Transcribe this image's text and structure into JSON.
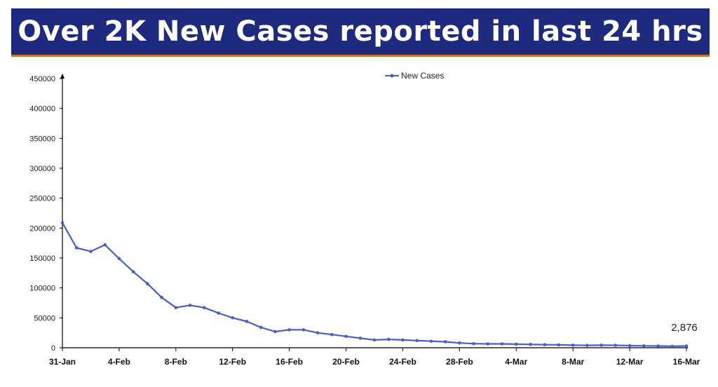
{
  "header": {
    "title": "Over 2K New Cases reported in last 24 hrs"
  },
  "colors": {
    "banner": "#1e2a7e",
    "banner_rule": "#c8742a",
    "series": "#4a5fc1"
  },
  "chart_data": {
    "type": "line",
    "title": "",
    "xlabel": "",
    "ylabel": "",
    "ylim": [
      0,
      450000
    ],
    "y_ticks": [
      0,
      50000,
      100000,
      150000,
      200000,
      250000,
      300000,
      350000,
      400000,
      450000
    ],
    "x_tick_labels": [
      "31-Jan",
      "4-Feb",
      "8-Feb",
      "12-Feb",
      "16-Feb",
      "20-Feb",
      "24-Feb",
      "28-Feb",
      "4-Mar",
      "8-Mar",
      "12-Mar",
      "16-Mar"
    ],
    "x": [
      "31-Jan",
      "1-Feb",
      "2-Feb",
      "3-Feb",
      "4-Feb",
      "5-Feb",
      "6-Feb",
      "7-Feb",
      "8-Feb",
      "9-Feb",
      "10-Feb",
      "11-Feb",
      "12-Feb",
      "13-Feb",
      "14-Feb",
      "15-Feb",
      "16-Feb",
      "17-Feb",
      "18-Feb",
      "19-Feb",
      "20-Feb",
      "21-Feb",
      "22-Feb",
      "23-Feb",
      "24-Feb",
      "25-Feb",
      "26-Feb",
      "27-Feb",
      "28-Feb",
      "1-Mar",
      "2-Mar",
      "3-Mar",
      "4-Mar",
      "5-Mar",
      "6-Mar",
      "7-Mar",
      "8-Mar",
      "9-Mar",
      "10-Mar",
      "11-Mar",
      "12-Mar",
      "13-Mar",
      "14-Mar",
      "15-Mar",
      "16-Mar"
    ],
    "series": [
      {
        "name": "New Cases",
        "values": [
          209000,
          167000,
          161000,
          172000,
          149000,
          127000,
          107000,
          84000,
          67000,
          71000,
          67000,
          58000,
          50000,
          44000,
          34000,
          27000,
          30000,
          30000,
          25000,
          22000,
          19000,
          16000,
          13000,
          14000,
          13000,
          12000,
          11000,
          10000,
          8000,
          6800,
          6500,
          6500,
          6000,
          5500,
          5000,
          4800,
          4300,
          4000,
          4200,
          4100,
          3500,
          3200,
          2900,
          2500,
          2876
        ]
      }
    ],
    "annotations": [
      {
        "x": "16-Mar",
        "text": "2,876"
      }
    ],
    "legend_position": "top-center",
    "grid": false
  }
}
